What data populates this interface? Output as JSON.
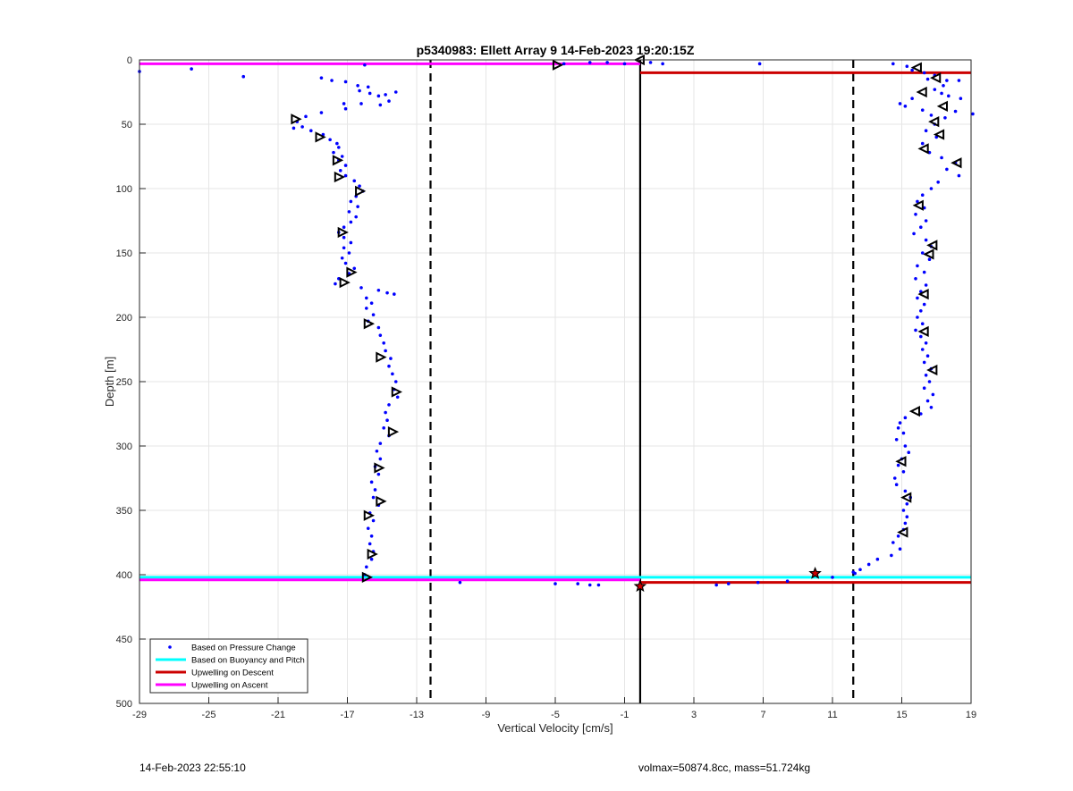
{
  "footer": {
    "timestamp": "14-Feb-2023 22:55:10",
    "vol_mass": "volmax=50874.8cc, mass=51.724kg"
  },
  "chart_data": {
    "type": "scatter",
    "title": "p5340983: Ellett Array 9 14-Feb-2023 19:20:15Z",
    "xlabel": "Vertical Velocity [cm/s]",
    "ylabel": "Depth [m]",
    "xlim": [
      -29,
      19
    ],
    "ylim": [
      0,
      500
    ],
    "y_reversed": true,
    "x_ticks": [
      -29,
      -25,
      -21,
      -17,
      -13,
      -9,
      -5,
      -1,
      3,
      7,
      11,
      15,
      19
    ],
    "y_ticks": [
      0,
      50,
      100,
      150,
      200,
      250,
      300,
      350,
      400,
      450,
      500
    ],
    "grid": true,
    "legend_position": "bottom-left",
    "legend": [
      {
        "label": "Based on Pressure Change",
        "color": "#0000ff",
        "style": "dot"
      },
      {
        "label": "Based on Buoyancy and Pitch",
        "color": "#00ffff",
        "style": "line"
      },
      {
        "label": "Upwelling on Descent",
        "color": "#cc0000",
        "style": "line"
      },
      {
        "label": "Upwelling on Ascent",
        "color": "#ff00ff",
        "style": "line"
      }
    ],
    "reference_lines": {
      "dashed_x": [
        -12.2,
        12.2
      ],
      "solid_x": -0.1
    },
    "horizontal_lines": [
      {
        "color": "#00ffff",
        "y": 402,
        "x_from": -29,
        "x_to": 19
      },
      {
        "color": "#ff00ff",
        "y": 404,
        "x_from": -29,
        "x_to": -0.1
      },
      {
        "color": "#ff00ff",
        "y": 3,
        "x_from": -29,
        "x_to": -0.1
      },
      {
        "color": "#cc0000",
        "y": 10,
        "x_from": -0.1,
        "x_to": 19
      },
      {
        "color": "#cc0000",
        "y": 406,
        "x_from": -0.1,
        "x_to": 19
      }
    ],
    "series": [
      {
        "type": "dots",
        "color": "#0000ff",
        "points": [
          [
            -29,
            9
          ],
          [
            -26,
            7
          ],
          [
            -23,
            13
          ],
          [
            -16,
            4
          ],
          [
            -4.5,
            3
          ],
          [
            -3,
            2
          ],
          [
            -2,
            2
          ],
          [
            -1,
            3
          ],
          [
            0.5,
            2
          ],
          [
            1.2,
            3
          ],
          [
            6.8,
            3
          ],
          [
            -18.5,
            14
          ],
          [
            -17.9,
            16
          ],
          [
            -17.1,
            17
          ],
          [
            -16.4,
            20
          ],
          [
            -15.8,
            21
          ],
          [
            -16.3,
            24
          ],
          [
            -15.7,
            26
          ],
          [
            -15.2,
            28
          ],
          [
            -14.8,
            27
          ],
          [
            -14.2,
            25
          ],
          [
            -14.6,
            32
          ],
          [
            -15.1,
            35
          ],
          [
            -16.2,
            34
          ],
          [
            -17.2,
            34
          ],
          [
            -17.1,
            38
          ],
          [
            -18.5,
            41
          ],
          [
            -19.4,
            44
          ],
          [
            -19.9,
            48
          ],
          [
            -19.6,
            52
          ],
          [
            -20.1,
            53
          ],
          [
            -19.1,
            55
          ],
          [
            -18.4,
            58
          ],
          [
            -18,
            62
          ],
          [
            -17.6,
            65
          ],
          [
            -17.5,
            68
          ],
          [
            -17.8,
            72
          ],
          [
            -17.3,
            75
          ],
          [
            -17.5,
            78
          ],
          [
            -17.1,
            82
          ],
          [
            -17.4,
            86
          ],
          [
            -17.1,
            90
          ],
          [
            -16.6,
            94
          ],
          [
            -16.3,
            98
          ],
          [
            -16.1,
            102
          ],
          [
            -16.5,
            106
          ],
          [
            -16.8,
            110
          ],
          [
            -16.4,
            114
          ],
          [
            -16.9,
            118
          ],
          [
            -16.5,
            122
          ],
          [
            -16.8,
            126
          ],
          [
            -17.2,
            130
          ],
          [
            -17.5,
            134
          ],
          [
            -17.2,
            138
          ],
          [
            -16.8,
            142
          ],
          [
            -17.2,
            146
          ],
          [
            -16.9,
            150
          ],
          [
            -17.3,
            154
          ],
          [
            -17.1,
            158
          ],
          [
            -16.6,
            162
          ],
          [
            -16.9,
            166
          ],
          [
            -17.5,
            170
          ],
          [
            -17.7,
            174
          ],
          [
            -16.2,
            177
          ],
          [
            -15.2,
            179
          ],
          [
            -14.7,
            181
          ],
          [
            -14.3,
            182
          ],
          [
            -15.9,
            185
          ],
          [
            -15.6,
            189
          ],
          [
            -15.9,
            193
          ],
          [
            -15.5,
            198
          ],
          [
            -15.8,
            203
          ],
          [
            -15.2,
            208
          ],
          [
            -15.1,
            214
          ],
          [
            -14.9,
            220
          ],
          [
            -14.8,
            226
          ],
          [
            -14.5,
            232
          ],
          [
            -14.6,
            238
          ],
          [
            -14.4,
            244
          ],
          [
            -14.2,
            250
          ],
          [
            -14.3,
            256
          ],
          [
            -14.1,
            262
          ],
          [
            -14.6,
            268
          ],
          [
            -14.8,
            274
          ],
          [
            -14.7,
            280
          ],
          [
            -14.9,
            286
          ],
          [
            -14.6,
            292
          ],
          [
            -15.1,
            298
          ],
          [
            -15.3,
            304
          ],
          [
            -15.1,
            310
          ],
          [
            -15.4,
            316
          ],
          [
            -15.2,
            322
          ],
          [
            -15.6,
            328
          ],
          [
            -15.4,
            334
          ],
          [
            -15.5,
            340
          ],
          [
            -15.2,
            346
          ],
          [
            -15.7,
            352
          ],
          [
            -15.5,
            358
          ],
          [
            -15.8,
            364
          ],
          [
            -15.6,
            370
          ],
          [
            -15.7,
            376
          ],
          [
            -15.5,
            382
          ],
          [
            -15.6,
            388
          ],
          [
            -15.9,
            394
          ],
          [
            -16,
            400
          ],
          [
            -10.5,
            406
          ],
          [
            -5,
            407
          ],
          [
            -3.7,
            407
          ],
          [
            -3,
            408
          ],
          [
            -2.5,
            408
          ],
          [
            4.3,
            408
          ],
          [
            5,
            407
          ],
          [
            6.7,
            406
          ],
          [
            8.4,
            405
          ],
          [
            11,
            402
          ],
          [
            12.3,
            399
          ],
          [
            14.5,
            3
          ],
          [
            15.3,
            5
          ],
          [
            15.6,
            8
          ],
          [
            16.3,
            10
          ],
          [
            16.9,
            12
          ],
          [
            16.5,
            15
          ],
          [
            17.6,
            16
          ],
          [
            18.3,
            16
          ],
          [
            17.4,
            20
          ],
          [
            16.9,
            23
          ],
          [
            17.3,
            26
          ],
          [
            17.7,
            28
          ],
          [
            18.4,
            30
          ],
          [
            15.6,
            30
          ],
          [
            14.9,
            34
          ],
          [
            15.2,
            36
          ],
          [
            16.2,
            39
          ],
          [
            16.7,
            43
          ],
          [
            17.5,
            45
          ],
          [
            18.1,
            40
          ],
          [
            19.1,
            42
          ],
          [
            16.9,
            50
          ],
          [
            16.4,
            55
          ],
          [
            17,
            60
          ],
          [
            16.2,
            65
          ],
          [
            16.6,
            72
          ],
          [
            17.3,
            76
          ],
          [
            18.1,
            80
          ],
          [
            17.6,
            85
          ],
          [
            18.3,
            90
          ],
          [
            17.1,
            95
          ],
          [
            16.7,
            100
          ],
          [
            16.2,
            105
          ],
          [
            15.9,
            110
          ],
          [
            16.3,
            115
          ],
          [
            15.8,
            120
          ],
          [
            16.4,
            125
          ],
          [
            16.1,
            130
          ],
          [
            15.7,
            135
          ],
          [
            16.4,
            140
          ],
          [
            16.7,
            145
          ],
          [
            16.2,
            150
          ],
          [
            16.6,
            155
          ],
          [
            15.9,
            160
          ],
          [
            16.3,
            165
          ],
          [
            15.8,
            170
          ],
          [
            16.4,
            175
          ],
          [
            16.1,
            180
          ],
          [
            15.9,
            185
          ],
          [
            16.3,
            190
          ],
          [
            16.1,
            195
          ],
          [
            15.9,
            200
          ],
          [
            16.2,
            205
          ],
          [
            15.8,
            210
          ],
          [
            16.1,
            215
          ],
          [
            16.4,
            220
          ],
          [
            16.2,
            225
          ],
          [
            16.5,
            230
          ],
          [
            16.3,
            235
          ],
          [
            16.7,
            240
          ],
          [
            16.4,
            245
          ],
          [
            16.6,
            250
          ],
          [
            16.3,
            255
          ],
          [
            16.8,
            260
          ],
          [
            16.5,
            265
          ],
          [
            16.7,
            270
          ],
          [
            16.1,
            275
          ],
          [
            15.2,
            278
          ],
          [
            14.9,
            282
          ],
          [
            14.8,
            286
          ],
          [
            15.1,
            290
          ],
          [
            14.7,
            295
          ],
          [
            15.2,
            300
          ],
          [
            15.4,
            305
          ],
          [
            15,
            310
          ],
          [
            14.8,
            315
          ],
          [
            15.1,
            320
          ],
          [
            14.6,
            325
          ],
          [
            14.7,
            330
          ],
          [
            15.2,
            335
          ],
          [
            15.5,
            340
          ],
          [
            15.3,
            345
          ],
          [
            15.1,
            350
          ],
          [
            15.3,
            355
          ],
          [
            15.2,
            360
          ],
          [
            15.1,
            365
          ],
          [
            14.8,
            370
          ],
          [
            14.5,
            375
          ],
          [
            14.9,
            380
          ],
          [
            14.4,
            385
          ],
          [
            13.6,
            388
          ],
          [
            13.1,
            392
          ],
          [
            12.6,
            396
          ],
          [
            12.2,
            398
          ]
        ]
      },
      {
        "type": "triangles-left",
        "color": "#000000",
        "points": [
          [
            -0.1,
            0
          ],
          [
            15.9,
            6
          ],
          [
            17,
            14
          ],
          [
            16.2,
            25
          ],
          [
            17.4,
            36
          ],
          [
            16.9,
            48
          ],
          [
            17.2,
            58
          ],
          [
            16.3,
            69
          ],
          [
            18.2,
            80
          ],
          [
            16,
            113
          ],
          [
            16.8,
            144
          ],
          [
            16.6,
            151
          ],
          [
            16.3,
            182
          ],
          [
            16.3,
            211
          ],
          [
            16.8,
            241
          ],
          [
            15.8,
            273
          ],
          [
            15,
            312
          ],
          [
            15.3,
            340
          ],
          [
            15.1,
            367
          ]
        ]
      },
      {
        "type": "triangles-right",
        "color": "#000000",
        "points": [
          [
            -4.9,
            4
          ],
          [
            -20,
            46
          ],
          [
            -18.6,
            60
          ],
          [
            -17.6,
            78
          ],
          [
            -17.5,
            91
          ],
          [
            -16.3,
            102
          ],
          [
            -17.3,
            134
          ],
          [
            -16.8,
            165
          ],
          [
            -17.2,
            173
          ],
          [
            -15.8,
            205
          ],
          [
            -15.1,
            231
          ],
          [
            -14.2,
            258
          ],
          [
            -14.4,
            289
          ],
          [
            -15.2,
            317
          ],
          [
            -15.1,
            343
          ],
          [
            -15.8,
            354
          ],
          [
            -15.6,
            384
          ],
          [
            -15.9,
            402
          ]
        ]
      },
      {
        "type": "stars",
        "color": "#cc0000",
        "points": [
          [
            10,
            399
          ],
          [
            -0.1,
            409
          ]
        ]
      }
    ]
  }
}
